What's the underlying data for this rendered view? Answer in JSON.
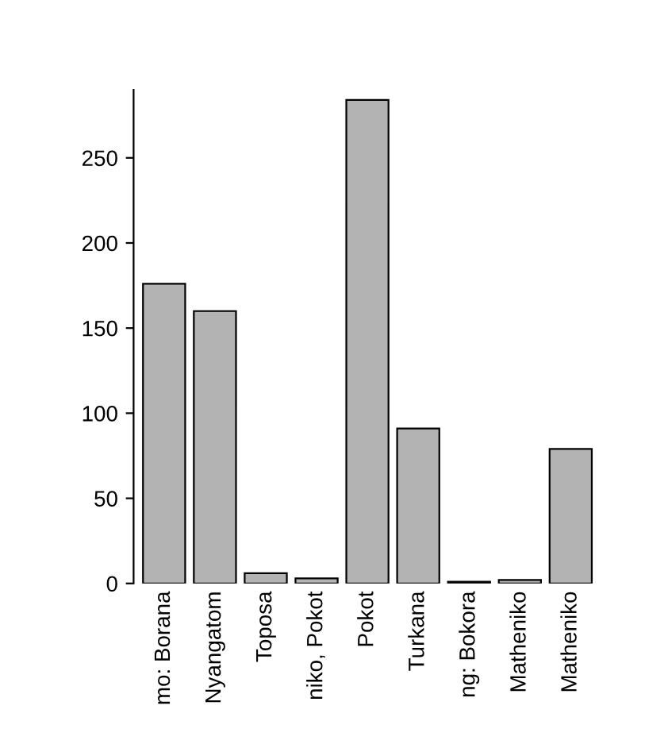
{
  "chart_data": {
    "type": "bar",
    "categories": [
      "mo: Borana",
      "Nyangatom",
      "Toposa",
      "niko, Pokot",
      "Pokot",
      "Turkana",
      "ng: Bokora",
      "Matheniko",
      "Matheniko"
    ],
    "values": [
      176,
      160,
      6,
      3,
      284,
      91,
      1,
      2,
      79
    ],
    "color": "#b3b3b3",
    "ylim": [
      0,
      290
    ],
    "yticks": [
      0,
      50,
      100,
      150,
      200,
      250
    ],
    "grid": false
  }
}
